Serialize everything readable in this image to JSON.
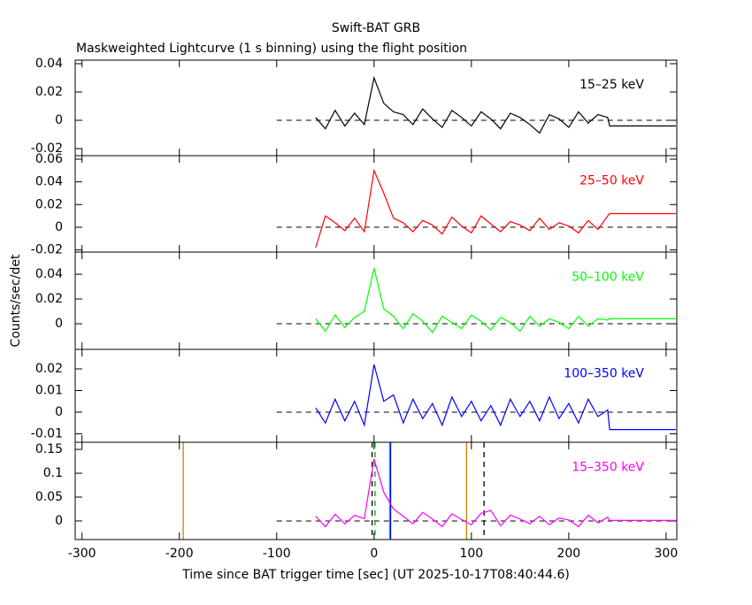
{
  "figure": {
    "title": "Swift-BAT GRB",
    "subtitle": "Maskweighted Lightcurve (1 s binning) using the flight position",
    "ylabel": "Counts/sec/det",
    "xlabel": "Time since BAT trigger time [sec] (UT 2025-10-17T08:40:44.6)"
  },
  "chart_data": [
    {
      "type": "line",
      "xlim": [
        -307,
        311
      ],
      "xticks": [
        -300,
        -200,
        -100,
        0,
        100,
        200,
        300
      ],
      "ylim": [
        -0.025,
        0.0425
      ],
      "yticks": [
        -0.02,
        0,
        0.02,
        0.04
      ],
      "x": [
        -60,
        -50,
        -40,
        -30,
        -20,
        -10,
        0,
        10,
        20,
        30,
        40,
        50,
        60,
        70,
        80,
        90,
        100,
        110,
        120,
        130,
        140,
        150,
        160,
        170,
        180,
        190,
        200,
        210,
        220,
        230,
        240,
        242,
        310
      ],
      "series": [
        {
          "name": "15–25 keV",
          "color": "#000000",
          "values": [
            0.002,
            -0.006,
            0.007,
            -0.004,
            0.005,
            -0.003,
            0.03,
            0.012,
            0.006,
            0.004,
            -0.003,
            0.008,
            0.001,
            -0.005,
            0.007,
            0.002,
            -0.004,
            0.006,
            0.001,
            -0.006,
            0.005,
            0.002,
            -0.003,
            -0.009,
            0.004,
            0.001,
            -0.005,
            0.006,
            -0.002,
            0.004,
            0.002,
            -0.004,
            -0.004
          ]
        }
      ]
    },
    {
      "type": "line",
      "xlim": [
        -307,
        311
      ],
      "xticks": [
        -300,
        -200,
        -100,
        0,
        100,
        200,
        300
      ],
      "ylim": [
        -0.0219,
        0.0631
      ],
      "yticks": [
        -0.02,
        0,
        0.02,
        0.04,
        0.06
      ],
      "x": [
        -60,
        -50,
        -40,
        -30,
        -20,
        -10,
        0,
        10,
        20,
        30,
        40,
        50,
        60,
        70,
        80,
        90,
        100,
        110,
        120,
        130,
        140,
        150,
        160,
        170,
        180,
        190,
        200,
        210,
        220,
        230,
        240,
        242,
        310
      ],
      "series": [
        {
          "name": "25–50 keV",
          "color": "#ff0000",
          "values": [
            -0.018,
            0.01,
            0.004,
            -0.003,
            0.008,
            -0.004,
            0.05,
            0.03,
            0.008,
            0.004,
            -0.004,
            0.006,
            0.002,
            -0.006,
            0.009,
            0.001,
            -0.005,
            0.01,
            0.003,
            -0.004,
            0.005,
            0.002,
            -0.003,
            0.008,
            -0.002,
            0.004,
            0.001,
            -0.005,
            0.006,
            -0.002,
            0.01,
            0.012,
            0.012
          ]
        }
      ]
    },
    {
      "type": "line",
      "xlim": [
        -307,
        311
      ],
      "xticks": [
        -300,
        -200,
        -100,
        0,
        100,
        200,
        300
      ],
      "ylim": [
        -0.0207,
        0.0579
      ],
      "yticks": [
        0,
        0.02,
        0.04
      ],
      "x": [
        -60,
        -50,
        -40,
        -30,
        -20,
        -10,
        0,
        10,
        20,
        30,
        40,
        50,
        60,
        70,
        80,
        90,
        100,
        110,
        120,
        130,
        140,
        150,
        160,
        170,
        180,
        190,
        200,
        210,
        220,
        230,
        240,
        242,
        310
      ],
      "series": [
        {
          "name": "50–100 keV",
          "color": "#00ff00",
          "values": [
            0.004,
            -0.006,
            0.007,
            -0.003,
            0.005,
            0.01,
            0.045,
            0.012,
            0.006,
            -0.004,
            0.008,
            0.002,
            -0.007,
            0.006,
            0.001,
            -0.004,
            0.007,
            0.002,
            -0.005,
            0.005,
            0.001,
            -0.006,
            0.006,
            -0.002,
            0.004,
            0.001,
            -0.004,
            0.006,
            -0.002,
            0.004,
            0.003,
            0.004,
            0.004
          ]
        }
      ]
    },
    {
      "type": "line",
      "xlim": [
        -307,
        311
      ],
      "xticks": [
        -300,
        -200,
        -100,
        0,
        100,
        200,
        300
      ],
      "ylim": [
        -0.0139,
        0.029
      ],
      "yticks": [
        -0.01,
        0,
        0.01,
        0.02
      ],
      "x": [
        -60,
        -50,
        -40,
        -30,
        -20,
        -10,
        0,
        10,
        20,
        30,
        40,
        50,
        60,
        70,
        80,
        90,
        100,
        110,
        120,
        130,
        140,
        150,
        160,
        170,
        180,
        190,
        200,
        210,
        220,
        230,
        240,
        242,
        310
      ],
      "series": [
        {
          "name": "100–350 keV",
          "color": "#0000ff",
          "values": [
            0.002,
            -0.005,
            0.006,
            -0.004,
            0.005,
            -0.006,
            0.022,
            0.005,
            0.008,
            -0.005,
            0.006,
            -0.003,
            0.004,
            -0.006,
            0.007,
            -0.002,
            0.005,
            -0.004,
            0.003,
            -0.006,
            0.006,
            -0.002,
            0.005,
            -0.004,
            0.007,
            -0.003,
            0.004,
            -0.005,
            0.006,
            -0.002,
            0.001,
            -0.008,
            -0.008
          ]
        }
      ]
    },
    {
      "type": "line",
      "xlim": [
        -307,
        311
      ],
      "xticks": [
        -300,
        -200,
        -100,
        0,
        100,
        200,
        300
      ],
      "ylim": [
        -0.039,
        0.165
      ],
      "yticks": [
        0,
        0.05,
        0.1,
        0.15
      ],
      "x": [
        -60,
        -50,
        -40,
        -30,
        -20,
        -10,
        0,
        10,
        20,
        30,
        40,
        50,
        60,
        70,
        80,
        90,
        100,
        110,
        120,
        130,
        140,
        150,
        160,
        170,
        180,
        190,
        200,
        210,
        220,
        230,
        240,
        242,
        310
      ],
      "series": [
        {
          "name": "15–350 keV",
          "color": "#ff00ff",
          "values": [
            0.01,
            -0.012,
            0.014,
            -0.006,
            0.012,
            0.005,
            0.13,
            0.06,
            0.025,
            0.01,
            -0.006,
            0.018,
            0.004,
            -0.012,
            0.015,
            0.003,
            -0.008,
            0.016,
            0.022,
            -0.01,
            0.012,
            0.004,
            -0.006,
            0.01,
            -0.008,
            0.006,
            0.002,
            -0.012,
            0.012,
            -0.004,
            0.008,
            0.001,
            0.001
          ]
        }
      ],
      "vlines": [
        {
          "x": -196,
          "color": "#d08000",
          "dash": false
        },
        {
          "x": 95,
          "color": "#d08000",
          "dash": false
        },
        {
          "x": -2,
          "color": "#000000",
          "dash": true
        },
        {
          "x": 113,
          "color": "#000000",
          "dash": true
        },
        {
          "x": 1,
          "color": "#00a000",
          "dash": true
        },
        {
          "x": 16,
          "color": "#00c0c0",
          "dash": false
        },
        {
          "x": 17,
          "color": "#0000ff",
          "dash": false
        }
      ]
    }
  ]
}
